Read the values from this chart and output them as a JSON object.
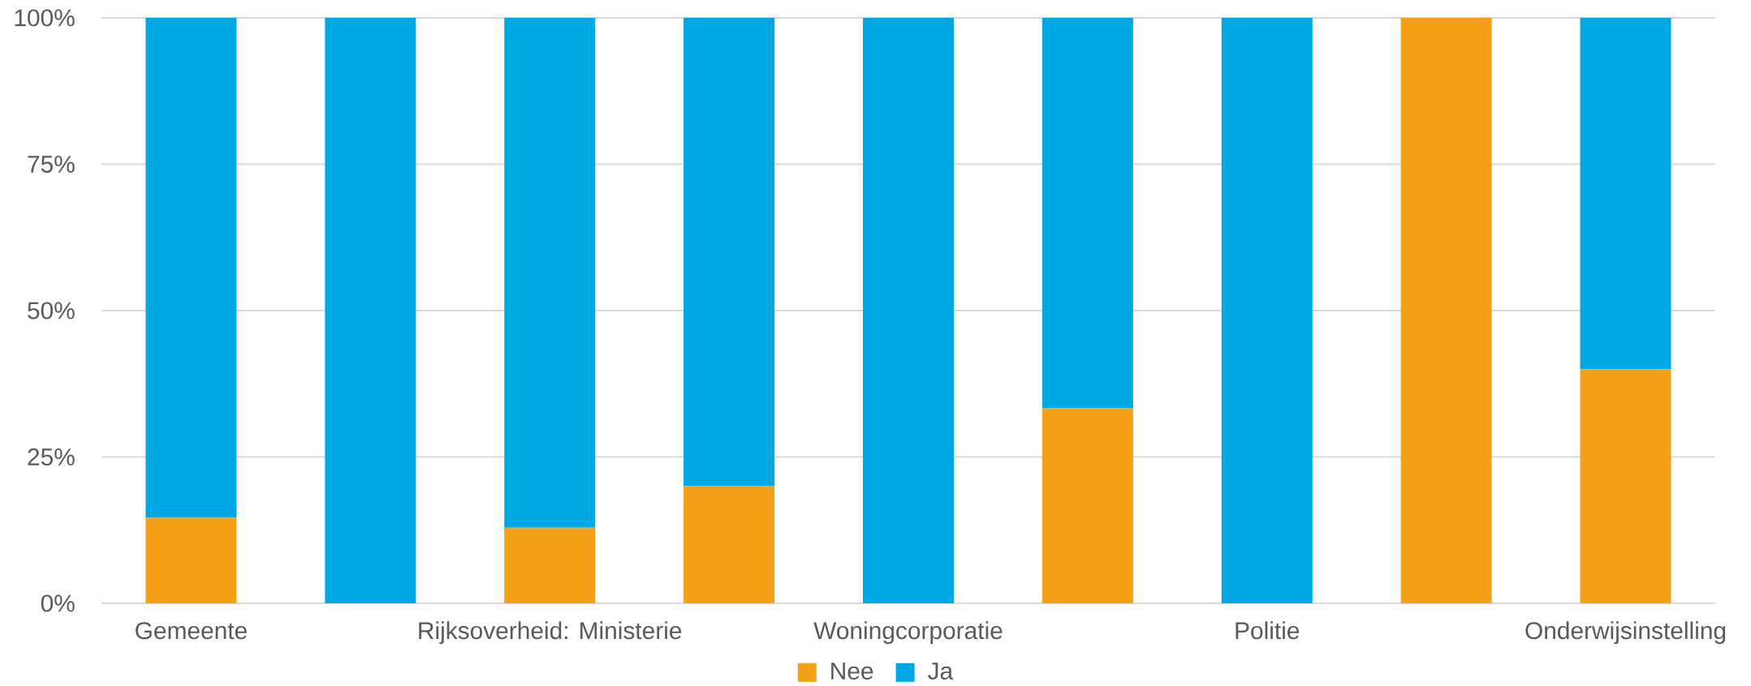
{
  "chart_data": {
    "type": "bar",
    "stacked": true,
    "categories": [
      "Gemeente",
      null,
      "Rijksoverheid: Ministerie",
      null,
      "Woningcorporatie",
      null,
      "Politie",
      null,
      "Onderwijsinstelling"
    ],
    "series": [
      {
        "name": "Nee",
        "color": "#f4a019",
        "values": [
          14.6,
          0,
          12.9,
          20,
          0,
          33.3,
          0,
          100,
          40
        ]
      },
      {
        "name": "Ja",
        "color": "#00a8e3",
        "values": [
          85.4,
          100,
          87.1,
          80,
          100,
          66.7,
          100,
          0,
          60
        ]
      }
    ],
    "ylim": [
      0,
      100
    ],
    "yticks": [
      {
        "value": 0,
        "label": "0%"
      },
      {
        "value": 25,
        "label": "25%"
      },
      {
        "value": 50,
        "label": "50%"
      },
      {
        "value": 75,
        "label": "75%"
      },
      {
        "value": 100,
        "label": "100%"
      }
    ],
    "grid": "y",
    "legend": "bottom"
  }
}
